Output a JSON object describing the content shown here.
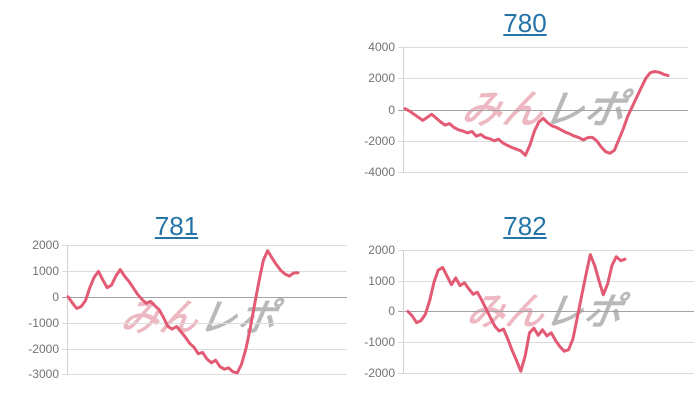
{
  "page": {
    "background": "#ffffff"
  },
  "colors": {
    "line": "#e25a73",
    "gridline": "#dcdcdc",
    "baseline": "#a3a3a3",
    "axis_line": "#d0d0d0",
    "tick_label": "#737373",
    "title_link": "#2474a8",
    "watermark_pink": "rgba(222,125,142,0.55)",
    "watermark_gray": "rgba(128,128,128,0.55)"
  },
  "watermark": {
    "pink": "みん",
    "gray": "レポ"
  },
  "chart_data": [
    {
      "type": "line",
      "title": "780",
      "title_is_link": true,
      "xlabel": "",
      "ylabel": "",
      "x_tick_labels": [],
      "grid": true,
      "legend": "none",
      "ylim": [
        -4000,
        4000
      ],
      "y_ticks": [
        4000,
        2000,
        0,
        -2000,
        -4000
      ],
      "values": [
        50,
        -100,
        -300,
        -500,
        -700,
        -500,
        -300,
        -550,
        -800,
        -1000,
        -900,
        -1150,
        -1300,
        -1380,
        -1500,
        -1400,
        -1700,
        -1600,
        -1800,
        -1870,
        -2000,
        -1900,
        -2150,
        -2300,
        -2430,
        -2540,
        -2650,
        -2930,
        -2300,
        -1400,
        -800,
        -560,
        -850,
        -1050,
        -1150,
        -1300,
        -1450,
        -1570,
        -1700,
        -1800,
        -1950,
        -1800,
        -1780,
        -2000,
        -2400,
        -2700,
        -2800,
        -2600,
        -1900,
        -1200,
        -400,
        200,
        800,
        1400,
        2000,
        2350,
        2430,
        2380,
        2250,
        2170
      ]
    },
    {
      "type": "line",
      "title": "781",
      "title_is_link": true,
      "xlabel": "",
      "ylabel": "",
      "x_tick_labels": [],
      "grid": true,
      "legend": "none",
      "ylim": [
        -3000,
        2000
      ],
      "y_ticks": [
        2000,
        1000,
        0,
        -1000,
        -2000,
        -3000
      ],
      "values": [
        0,
        -250,
        -450,
        -380,
        -150,
        350,
        750,
        980,
        650,
        350,
        450,
        800,
        1050,
        800,
        600,
        350,
        100,
        -100,
        -250,
        -180,
        -350,
        -500,
        -800,
        -1150,
        -1250,
        -1150,
        -1350,
        -1550,
        -1800,
        -1950,
        -2200,
        -2150,
        -2400,
        -2550,
        -2450,
        -2700,
        -2800,
        -2750,
        -2900,
        -2940,
        -2600,
        -2000,
        -1200,
        -300,
        600,
        1400,
        1780,
        1500,
        1250,
        1020,
        880,
        800,
        920,
        930
      ]
    },
    {
      "type": "line",
      "title": "782",
      "title_is_link": true,
      "xlabel": "",
      "ylabel": "",
      "x_tick_labels": [],
      "grid": true,
      "legend": "none",
      "ylim": [
        -2000,
        2000
      ],
      "y_ticks": [
        2000,
        1000,
        0,
        -1000,
        -2000
      ],
      "values": [
        0,
        -150,
        -370,
        -300,
        -100,
        350,
        950,
        1350,
        1430,
        1150,
        870,
        1090,
        840,
        930,
        740,
        560,
        620,
        360,
        80,
        -200,
        -480,
        -640,
        -580,
        -900,
        -1270,
        -1600,
        -1950,
        -1450,
        -700,
        -550,
        -780,
        -600,
        -800,
        -700,
        -950,
        -1150,
        -1300,
        -1250,
        -900,
        -200,
        500,
        1200,
        1850,
        1500,
        1000,
        540,
        900,
        1500,
        1780,
        1650,
        1700
      ]
    }
  ]
}
